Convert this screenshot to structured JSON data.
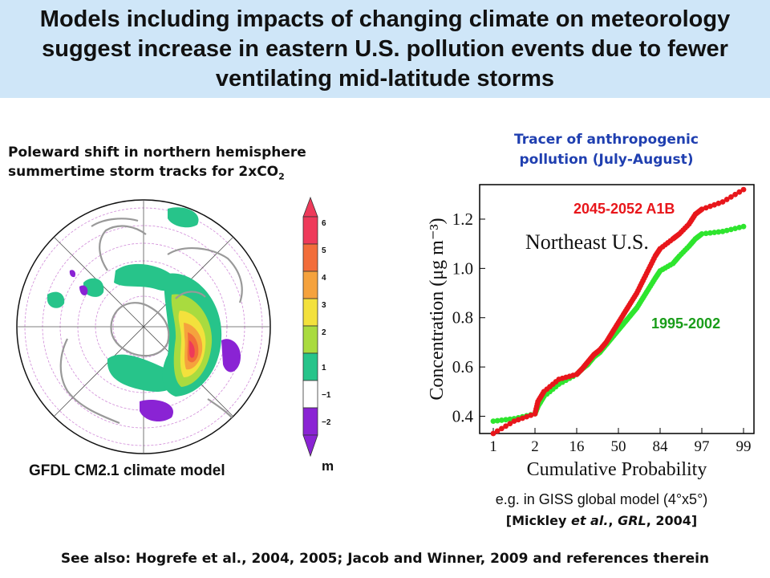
{
  "title": "Models including impacts of changing climate on meteorology suggest increase in eastern U.S. pollution events due to fewer ventilating mid-latitude storms",
  "map": {
    "caption_line1": "Poleward shift in northern hemisphere",
    "caption_line2": "summertime storm tracks for 2xCO",
    "caption_sub": "2",
    "model_label": "GFDL CM2.1 climate model",
    "unit": "m",
    "colorbar_labels": [
      "6",
      "5",
      "4",
      "3",
      "2",
      "1",
      "−1",
      "−2"
    ],
    "colorbar_colors": [
      "#ee3a5a",
      "#f26d3a",
      "#f5a23d",
      "#f3e13c",
      "#a9db3f",
      "#27c48a",
      "#ffffff",
      "#8a23d4"
    ]
  },
  "chart_title_line1": "Tracer of anthropogenic",
  "chart_title_line2": "pollution (July-August)",
  "chart_data": {
    "type": "scatter",
    "title": "Tracer of anthropogenic pollution (July-August)",
    "annotation": "Northeast U.S.",
    "xlabel": "Cumulative Probability",
    "ylabel": "Concentration (μg m⁻³)",
    "xticks": [
      "1",
      "2",
      "16",
      "50",
      "84",
      "97",
      "99"
    ],
    "yticks": [
      "0.4",
      "0.6",
      "0.8",
      "1.0",
      "1.2"
    ],
    "ylim": [
      0.33,
      1.34
    ],
    "series": [
      {
        "name": "2045-2052 A1B",
        "color": "#e8161b",
        "points": [
          [
            1,
            0.33
          ],
          [
            1.5,
            0.38
          ],
          [
            2,
            0.41
          ],
          [
            3,
            0.46
          ],
          [
            5,
            0.5
          ],
          [
            10,
            0.55
          ],
          [
            16,
            0.57
          ],
          [
            20,
            0.59
          ],
          [
            25,
            0.62
          ],
          [
            30,
            0.65
          ],
          [
            35,
            0.67
          ],
          [
            40,
            0.7
          ],
          [
            45,
            0.74
          ],
          [
            50,
            0.78
          ],
          [
            55,
            0.82
          ],
          [
            60,
            0.86
          ],
          [
            65,
            0.9
          ],
          [
            70,
            0.95
          ],
          [
            75,
            1.0
          ],
          [
            80,
            1.05
          ],
          [
            84,
            1.08
          ],
          [
            88,
            1.12
          ],
          [
            90,
            1.14
          ],
          [
            93,
            1.18
          ],
          [
            95,
            1.22
          ],
          [
            97,
            1.24
          ],
          [
            98,
            1.27
          ],
          [
            99,
            1.32
          ]
        ]
      },
      {
        "name": "1995-2002",
        "color": "#2ee52e",
        "points": [
          [
            1,
            0.38
          ],
          [
            1.5,
            0.39
          ],
          [
            2,
            0.41
          ],
          [
            3,
            0.44
          ],
          [
            5,
            0.48
          ],
          [
            10,
            0.53
          ],
          [
            16,
            0.57
          ],
          [
            20,
            0.59
          ],
          [
            25,
            0.61
          ],
          [
            30,
            0.64
          ],
          [
            35,
            0.66
          ],
          [
            40,
            0.69
          ],
          [
            45,
            0.72
          ],
          [
            50,
            0.75
          ],
          [
            55,
            0.78
          ],
          [
            60,
            0.81
          ],
          [
            65,
            0.84
          ],
          [
            70,
            0.88
          ],
          [
            75,
            0.92
          ],
          [
            80,
            0.96
          ],
          [
            84,
            0.99
          ],
          [
            88,
            1.02
          ],
          [
            90,
            1.05
          ],
          [
            93,
            1.09
          ],
          [
            95,
            1.12
          ],
          [
            97,
            1.14
          ],
          [
            98,
            1.15
          ],
          [
            99,
            1.17
          ]
        ]
      }
    ]
  },
  "note": "e.g. in GISS global model (4°x5°)",
  "citation": {
    "open": "[Mickley ",
    "etal": "et al.",
    "mid": ", ",
    "journal": "GRL",
    "close": ", 2004]"
  },
  "footer": "See also: Hogrefe et al., 2004, 2005; Jacob and Winner, 2009 and references therein"
}
